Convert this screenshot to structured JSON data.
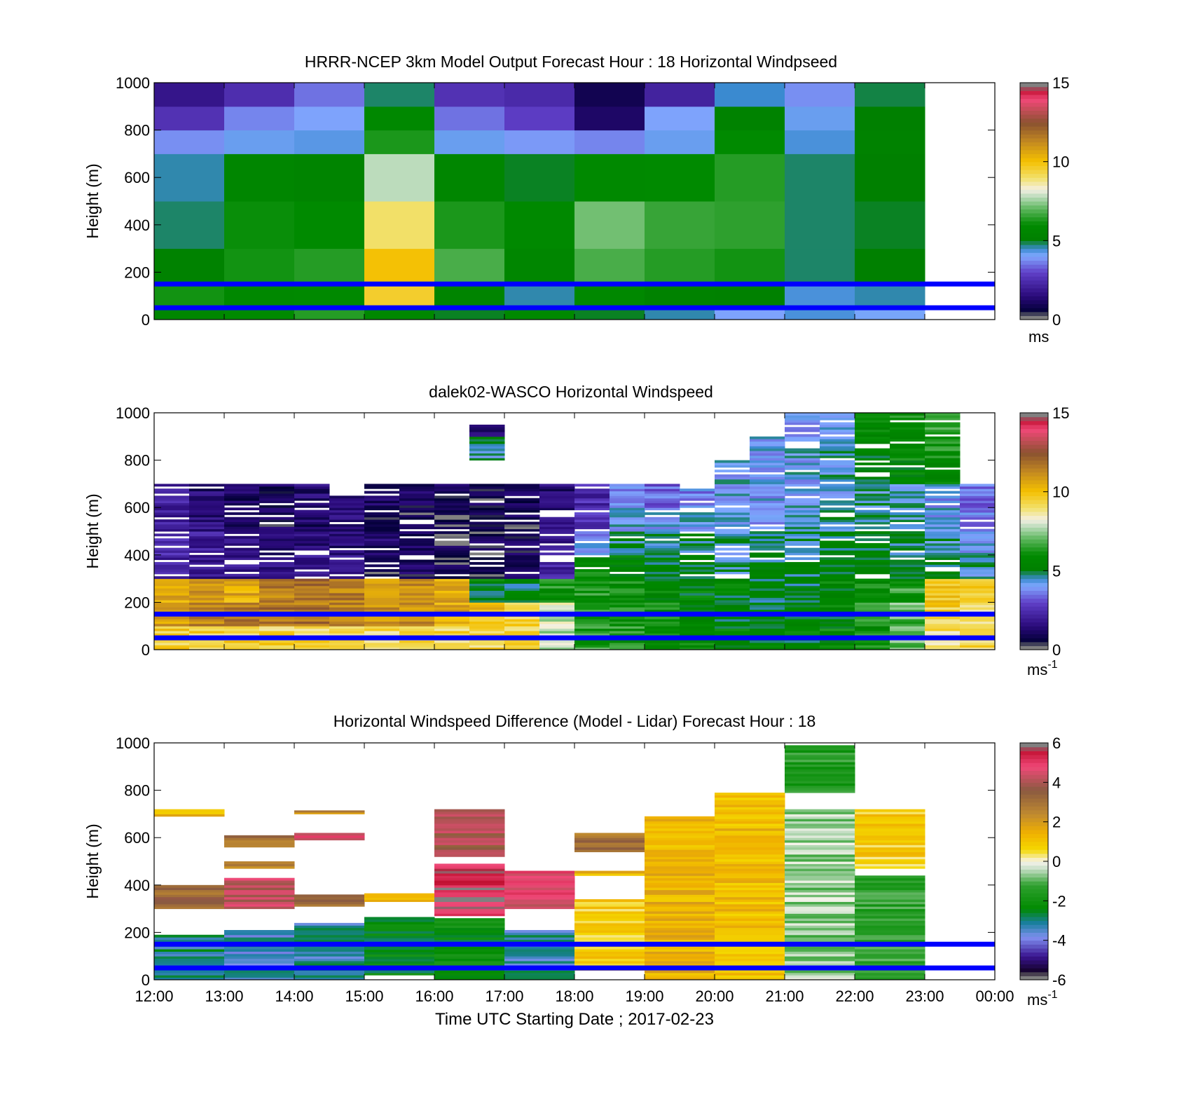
{
  "chart_data": [
    {
      "type": "heatmap",
      "id": "model",
      "title": "HRRR-NCEP 3km Model Output   Forecast Hour : 18 Horizontal Windpseed",
      "ylabel": "Height (m)",
      "xlabel": "",
      "ylim": [
        0,
        1000
      ],
      "yticks": [
        "0",
        "200",
        "400",
        "600",
        "800",
        "1000"
      ],
      "xticks_shown": false,
      "colorbar": {
        "min": 0,
        "max": 15,
        "ticks": [
          "0",
          "5",
          "10",
          "15"
        ],
        "unit": "ms",
        "unit_sup": ""
      },
      "reference_heights_m": [
        50,
        150
      ],
      "reference_line_color": "#0000ff",
      "x_hours": [
        12,
        13,
        14,
        15,
        16,
        17,
        18,
        19,
        20,
        21,
        22
      ],
      "y_edges_m": [
        0,
        50,
        150,
        300,
        500,
        700,
        800,
        900,
        1000
      ],
      "values": [
        [
          5.6,
          6.0,
          6.4,
          5.8,
          5.0,
          5.9,
          5.0,
          4.6,
          4.0,
          4.4,
          4.1
        ],
        [
          6.2,
          5.8,
          5.9,
          9.6,
          5.5,
          4.6,
          5.8,
          5.3,
          5.2,
          4.4,
          4.6
        ],
        [
          5.3,
          6.2,
          6.4,
          10.0,
          6.8,
          5.6,
          6.8,
          6.4,
          6.2,
          4.8,
          5.1
        ],
        [
          4.8,
          6.1,
          6.0,
          9.0,
          6.3,
          5.9,
          7.2,
          6.6,
          6.5,
          4.8,
          5.0
        ],
        [
          4.6,
          5.6,
          5.5,
          7.8,
          5.6,
          5.0,
          5.9,
          6.0,
          6.4,
          4.8,
          5.1
        ],
        [
          3.8,
          4.2,
          4.3,
          6.3,
          4.2,
          3.9,
          3.7,
          4.2,
          6.0,
          4.4,
          5.3
        ],
        [
          2.6,
          3.7,
          4.0,
          5.8,
          3.5,
          2.9,
          1.2,
          4.0,
          5.3,
          4.2,
          5.1
        ],
        [
          1.8,
          2.5,
          3.5,
          4.8,
          2.6,
          2.4,
          0.9,
          2.2,
          4.5,
          3.8,
          4.9
        ]
      ]
    },
    {
      "type": "heatmap",
      "id": "lidar",
      "title": "dalek02-WASCO  Horizontal Windspeed",
      "ylabel": "Height (m)",
      "xlabel": "",
      "ylim": [
        0,
        1000
      ],
      "yticks": [
        "0",
        "200",
        "400",
        "600",
        "800",
        "1000"
      ],
      "xticks_shown": false,
      "colorbar": {
        "min": 0,
        "max": 15,
        "ticks": [
          "0",
          "5",
          "10",
          "15"
        ],
        "unit": "ms",
        "unit_sup": "-1"
      },
      "reference_heights_m": [
        50,
        150
      ],
      "reference_line_color": "#0000ff",
      "time_bins_hours": [
        12.0,
        12.5,
        13.0,
        13.5,
        14.0,
        14.5,
        15.0,
        15.5,
        16.0,
        16.5,
        17.0,
        17.5,
        18.0,
        18.5,
        19.0,
        19.5,
        20.0,
        20.5,
        21.0,
        21.5,
        22.0,
        22.5,
        23.0,
        23.5,
        24.0
      ],
      "height_bins_m": [
        0,
        100,
        200,
        300,
        400,
        500,
        600,
        700,
        800,
        900,
        1000
      ],
      "coverage_top_m": [
        700,
        700,
        700,
        700,
        700,
        650,
        700,
        700,
        710,
        950,
        720,
        700,
        700,
        700,
        700,
        700,
        800,
        900,
        1000,
        1000,
        1000,
        1000,
        1000,
        700,
        700
      ],
      "values": [
        [
          9.5,
          9.5,
          9.5,
          9.4,
          9.3,
          9.2,
          9.2,
          9.2,
          9.3,
          9.4,
          9.2,
          7.8,
          6.4,
          6.2,
          5.8,
          5.6,
          5.4,
          5.3,
          5.4,
          5.6,
          6.0,
          7.2,
          9.0,
          9.2,
          6.0
        ],
        [
          11.0,
          11.2,
          11.4,
          11.6,
          11.6,
          11.4,
          11.2,
          11.0,
          10.5,
          10.0,
          9.5,
          8.0,
          6.2,
          6.0,
          5.8,
          5.6,
          5.3,
          5.4,
          5.4,
          5.5,
          6.2,
          7.0,
          9.5,
          9.0,
          7.5
        ],
        [
          10.5,
          10.8,
          10.5,
          11.5,
          12.0,
          11.5,
          11.0,
          11.2,
          10.6,
          5.4,
          5.2,
          6.1,
          6.2,
          6.0,
          5.6,
          5.5,
          5.4,
          5.1,
          5.2,
          5.5,
          6.0,
          6.4,
          9.6,
          9.5,
          6.5
        ],
        [
          2.2,
          2.0,
          1.8,
          1.6,
          1.9,
          1.7,
          0.8,
          1.0,
          0.8,
          0.6,
          0.9,
          2.2,
          5.8,
          5.6,
          5.2,
          5.1,
          4.8,
          5.0,
          4.9,
          5.2,
          5.3,
          5.1,
          4.8,
          4.5,
          4.2
        ],
        [
          2.6,
          2.0,
          1.6,
          1.4,
          1.5,
          1.4,
          1.2,
          0.9,
          0.7,
          0.8,
          1.0,
          2.0,
          3.8,
          4.8,
          4.6,
          4.8,
          4.5,
          4.6,
          4.7,
          5.0,
          5.2,
          4.8,
          4.6,
          4.2,
          4.0
        ],
        [
          2.0,
          1.5,
          1.2,
          1.0,
          1.2,
          1.4,
          1.0,
          0.8,
          0.6,
          0.6,
          0.8,
          1.6,
          2.8,
          4.2,
          4.0,
          4.2,
          4.3,
          4.1,
          4.4,
          4.6,
          4.8,
          4.5,
          4.2,
          3.8,
          3.6
        ],
        [
          2.2,
          1.4,
          1.0,
          1.0,
          1.4,
          1.6,
          1.2,
          1.0,
          0.8,
          0.8,
          1.0,
          1.4,
          2.4,
          3.6,
          3.4,
          3.8,
          4.2,
          4.0,
          4.2,
          4.4,
          4.6,
          4.4,
          4.0,
          3.4,
          3.2
        ],
        [
          0.0,
          0.0,
          0.0,
          0.0,
          0.0,
          0.0,
          0.0,
          0.0,
          0.0,
          0.0,
          0.0,
          0.0,
          0.0,
          0.0,
          0.0,
          0.0,
          4.2,
          4.0,
          4.2,
          4.4,
          5.2,
          5.6,
          5.8,
          0.0,
          0.0
        ],
        [
          0.0,
          0.0,
          0.0,
          0.0,
          0.0,
          0.0,
          0.0,
          0.0,
          0.0,
          4.6,
          0.0,
          0.0,
          0.0,
          0.0,
          0.0,
          0.0,
          0.0,
          4.0,
          4.2,
          4.4,
          5.4,
          5.8,
          6.2,
          0.0,
          0.0
        ],
        [
          0.0,
          0.0,
          0.0,
          0.0,
          0.0,
          0.0,
          0.0,
          0.0,
          0.0,
          1.4,
          0.0,
          0.0,
          0.0,
          0.0,
          0.0,
          0.0,
          0.0,
          0.0,
          4.0,
          4.2,
          5.6,
          6.0,
          6.6,
          0.0,
          0.0
        ]
      ]
    },
    {
      "type": "heatmap",
      "id": "difference",
      "title": "Horizontal Windspeed Difference (Model - Lidar) Forecast Hour : 18",
      "ylabel": "Height (m)",
      "xlabel": "Time UTC  Starting Date ; 2017-02-23",
      "ylim": [
        0,
        1000
      ],
      "yticks": [
        "0",
        "200",
        "400",
        "600",
        "800",
        "1000"
      ],
      "xticks": [
        "12:00",
        "13:00",
        "14:00",
        "15:00",
        "16:00",
        "17:00",
        "18:00",
        "19:00",
        "20:00",
        "21:00",
        "22:00",
        "23:00",
        "00:00"
      ],
      "colorbar": {
        "min": -6,
        "max": 6,
        "ticks": [
          "-6",
          "-4",
          "-2",
          "0",
          "2",
          "4",
          "6"
        ],
        "unit": "ms",
        "unit_sup": "-1"
      },
      "reference_heights_m": [
        50,
        150
      ],
      "reference_line_color": "#0000ff",
      "blocks": [
        {
          "t": 12,
          "y0": 0,
          "y1": 190,
          "v": -3.0
        },
        {
          "t": 12,
          "y0": 300,
          "y1": 400,
          "v": 3.2
        },
        {
          "t": 12,
          "y0": 690,
          "y1": 720,
          "v": 1.2
        },
        {
          "t": 13,
          "y0": 0,
          "y1": 210,
          "v": -3.4
        },
        {
          "t": 13,
          "y0": 300,
          "y1": 430,
          "v": 4.2
        },
        {
          "t": 13,
          "y0": 470,
          "y1": 500,
          "v": 2.4
        },
        {
          "t": 13,
          "y0": 560,
          "y1": 610,
          "v": 3.0
        },
        {
          "t": 14,
          "y0": 0,
          "y1": 240,
          "v": -3.2
        },
        {
          "t": 14,
          "y0": 310,
          "y1": 360,
          "v": 3.0
        },
        {
          "t": 14,
          "y0": 590,
          "y1": 620,
          "v": 4.4
        },
        {
          "t": 14,
          "y0": 700,
          "y1": 715,
          "v": 2.4
        },
        {
          "t": 15,
          "y0": 20,
          "y1": 265,
          "v": -2.4
        },
        {
          "t": 15,
          "y0": 330,
          "y1": 365,
          "v": 1.6
        },
        {
          "t": 16,
          "y0": 0,
          "y1": 260,
          "v": -2.2
        },
        {
          "t": 16,
          "y0": 270,
          "y1": 490,
          "v": 5.2
        },
        {
          "t": 16,
          "y0": 520,
          "y1": 720,
          "v": 4.0
        },
        {
          "t": 17,
          "y0": 0,
          "y1": 210,
          "v": -3.2
        },
        {
          "t": 17,
          "y0": 300,
          "y1": 460,
          "v": 4.6
        },
        {
          "t": 18,
          "y0": 40,
          "y1": 340,
          "v": 0.8
        },
        {
          "t": 18,
          "y0": 440,
          "y1": 460,
          "v": 1.4
        },
        {
          "t": 18,
          "y0": 540,
          "y1": 620,
          "v": 3.0
        },
        {
          "t": 19,
          "y0": 0,
          "y1": 690,
          "v": 1.4
        },
        {
          "t": 20,
          "y0": 0,
          "y1": 790,
          "v": 1.2
        },
        {
          "t": 21,
          "y0": 0,
          "y1": 720,
          "v": -0.6
        },
        {
          "t": 21,
          "y0": 790,
          "y1": 990,
          "v": -1.6
        },
        {
          "t": 22,
          "y0": 0,
          "y1": 440,
          "v": -1.4
        },
        {
          "t": 22,
          "y0": 470,
          "y1": 720,
          "v": 0.8
        }
      ]
    }
  ]
}
